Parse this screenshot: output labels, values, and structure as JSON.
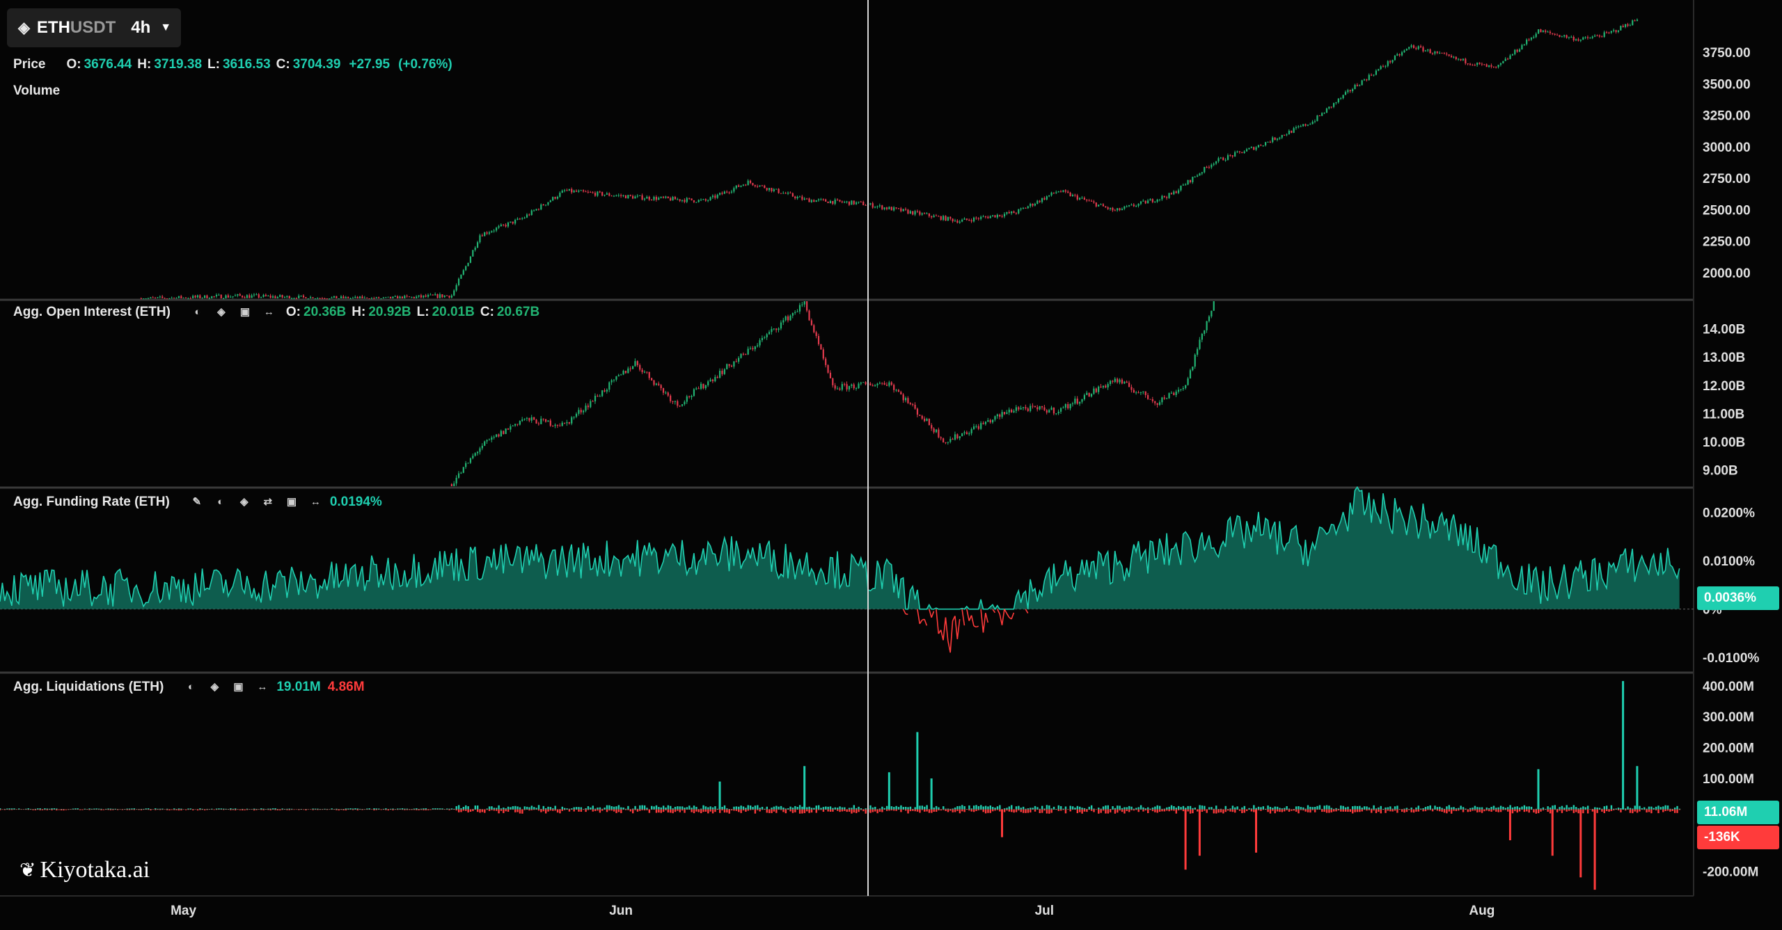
{
  "symbol": {
    "base": "ETH",
    "quote": "USDT",
    "timeframe": "4h"
  },
  "legend": {
    "price": {
      "name": "Price",
      "o_label": "O:",
      "o": "3676.44",
      "h_label": "H:",
      "h": "3719.38",
      "l_label": "L:",
      "l": "3616.53",
      "c_label": "C:",
      "c": "3704.39",
      "change": "+27.95",
      "change_pct": "(+0.76%)"
    },
    "volume": {
      "name": "Volume"
    },
    "oi": {
      "name": "Agg. Open Interest (ETH)",
      "o_label": "O:",
      "o": "20.36B",
      "h_label": "H:",
      "h": "20.92B",
      "l_label": "L:",
      "l": "20.01B",
      "c_label": "C:",
      "c": "20.67B"
    },
    "funding": {
      "name": "Agg. Funding Rate (ETH)",
      "value": "0.0194%"
    },
    "liq": {
      "name": "Agg. Liquidations (ETH)",
      "long": "19.01M",
      "short": "4.86M"
    }
  },
  "tags": {
    "funding_current": "0.0036%",
    "liq_long": "11.06M",
    "liq_short": "-136K"
  },
  "logo_text": "Kiyotaka.ai",
  "colors": {
    "up": "#1fcfb0",
    "down": "#ff3b3b",
    "candle_up": "#22b473",
    "candle_down": "#e23b4e",
    "fill": "#0e5d4e",
    "background": "#050505"
  },
  "chart_data": [
    {
      "type": "candlestick",
      "series_name": "Price",
      "y_ticks": [
        2000,
        2250,
        2500,
        2750,
        3000,
        3250,
        3500,
        3750
      ],
      "y_tick_labels": [
        "2000.00",
        "2250.00",
        "2500.00",
        "2750.00",
        "3000.00",
        "3250.00",
        "3500.00",
        "3750.00"
      ],
      "ylim": [
        1790,
        4000
      ],
      "x_ticks": [
        "May",
        "Jun",
        "Jul",
        "Aug"
      ],
      "x": [
        "2024-04-28",
        "2024-05-05",
        "2024-05-10",
        "2024-05-15",
        "2024-05-20",
        "2024-05-21",
        "2024-05-22",
        "2024-05-25",
        "2024-05-28",
        "2024-06-02",
        "2024-06-07",
        "2024-06-10",
        "2024-06-14",
        "2024-06-18",
        "2024-06-22",
        "2024-06-25",
        "2024-06-29",
        "2024-07-02",
        "2024-07-06",
        "2024-07-10",
        "2024-07-13",
        "2024-07-16",
        "2024-07-20",
        "2024-07-23",
        "2024-07-27",
        "2024-07-30",
        "2024-08-02",
        "2024-08-05",
        "2024-08-08",
        "2024-08-10",
        "2024-08-12"
      ],
      "close": [
        1790,
        1815,
        1800,
        1790,
        1820,
        2050,
        2300,
        2430,
        2650,
        2600,
        2570,
        2720,
        2580,
        2550,
        2470,
        2410,
        2480,
        2650,
        2490,
        2620,
        2880,
        3000,
        3200,
        3480,
        3800,
        3700,
        3620,
        3920,
        3850,
        3900,
        4010
      ]
    },
    {
      "type": "candlestick",
      "series_name": "Agg. Open Interest (ETH)",
      "y_ticks": [
        9,
        10,
        11,
        12,
        13,
        14
      ],
      "y_tick_labels": [
        "9.00B",
        "10.00B",
        "11.00B",
        "12.00B",
        "13.00B",
        "14.00B"
      ],
      "ylim": [
        8.5,
        15
      ],
      "x": [
        "2024-05-20",
        "2024-05-22",
        "2024-05-25",
        "2024-05-28",
        "2024-06-02",
        "2024-06-05",
        "2024-06-10",
        "2024-06-14",
        "2024-06-16",
        "2024-06-20",
        "2024-06-24",
        "2024-06-29",
        "2024-07-02",
        "2024-07-06",
        "2024-07-09",
        "2024-07-11",
        "2024-07-13"
      ],
      "close": [
        8.5,
        9.8,
        10.8,
        10.6,
        12.8,
        11.3,
        13.2,
        14.9,
        11.9,
        12.1,
        10.0,
        11.2,
        11.1,
        12.2,
        11.4,
        12.0,
        15.0
      ]
    },
    {
      "type": "area",
      "series_name": "Agg. Funding Rate (ETH)",
      "y_ticks": [
        0.02,
        0.01,
        0,
        -0.01
      ],
      "y_tick_labels": [
        "0.0200%",
        "0.0100%",
        "0%",
        "-0.0100%"
      ],
      "ylim": [
        -0.013,
        0.025
      ],
      "x": [
        "2024-04-28",
        "2024-05-10",
        "2024-05-20",
        "2024-06-10",
        "2024-06-20",
        "2024-06-24",
        "2024-07-02",
        "2024-07-16",
        "2024-07-20",
        "2024-07-23",
        "2024-07-30",
        "2024-08-05",
        "2024-08-12"
      ],
      "values": [
        0.004,
        0.005,
        0.009,
        0.011,
        0.006,
        -0.006,
        0.006,
        0.016,
        0.012,
        0.021,
        0.016,
        0.004,
        0.009
      ]
    },
    {
      "type": "bar",
      "series_name": "Agg. Liquidations (ETH)",
      "y_ticks": [
        400,
        300,
        200,
        100,
        -200
      ],
      "y_tick_labels": [
        "400.00M",
        "300.00M",
        "200.00M",
        "100.00M",
        "-200.00M"
      ],
      "ylim": [
        -280,
        440
      ],
      "series": [
        {
          "name": "long",
          "x": [
            "2024-06-08",
            "2024-06-14",
            "2024-06-20",
            "2024-06-22",
            "2024-06-23",
            "2024-08-05",
            "2024-08-11",
            "2024-08-12"
          ],
          "values": [
            90,
            140,
            120,
            250,
            100,
            130,
            415,
            140
          ]
        },
        {
          "name": "short",
          "x": [
            "2024-06-28",
            "2024-07-11",
            "2024-07-12",
            "2024-07-16",
            "2024-08-03",
            "2024-08-06",
            "2024-08-08",
            "2024-08-09"
          ],
          "values": [
            -90,
            -195,
            -150,
            -140,
            -100,
            -150,
            -220,
            -260
          ]
        }
      ]
    }
  ]
}
